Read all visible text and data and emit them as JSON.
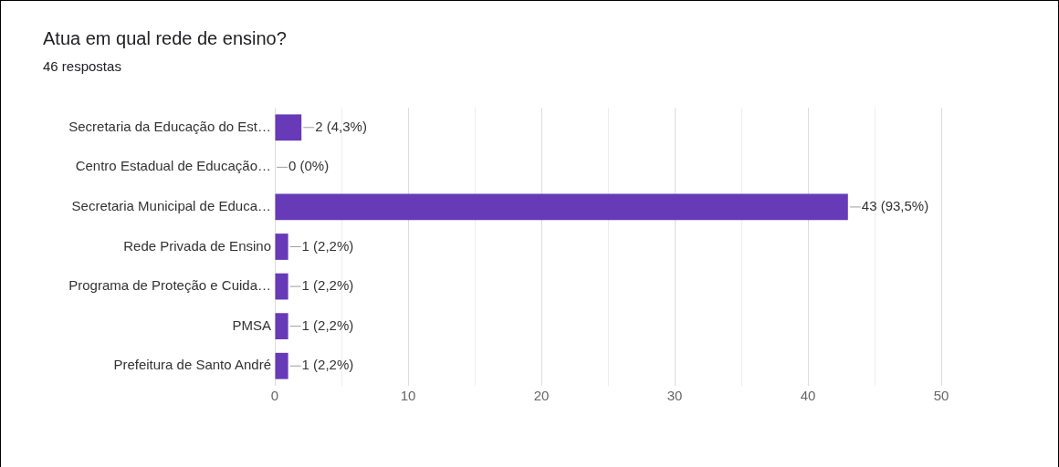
{
  "chart_data": {
    "type": "bar",
    "orientation": "horizontal",
    "title": "Atua em qual rede de ensino?",
    "subtitle": "46 respostas",
    "categories": [
      "Secretaria da Educação do Est…",
      "Centro Estadual de Educação…",
      "Secretaria Municipal de Educa…",
      "Rede Privada de Ensino",
      "Programa de Proteção e Cuida…",
      "PMSA",
      "Prefeitura de Santo André"
    ],
    "values": [
      2,
      0,
      43,
      1,
      1,
      1,
      1
    ],
    "value_labels": [
      "2 (4,3%)",
      "0 (0%)",
      "43 (93,5%)",
      "1 (2,2%)",
      "1 (2,2%)",
      "1 (2,2%)",
      "1 (2,2%)"
    ],
    "color": "#673ab7",
    "xlim": [
      0,
      50
    ],
    "xticks": [
      0,
      {
        "value": 5,
        "label": null
      },
      10,
      {
        "value": 15,
        "label": null
      },
      20,
      {
        "value": 25,
        "label": null
      },
      30,
      {
        "value": 35,
        "label": null
      },
      40,
      {
        "value": 45,
        "label": null
      },
      50
    ],
    "grid": "x"
  }
}
